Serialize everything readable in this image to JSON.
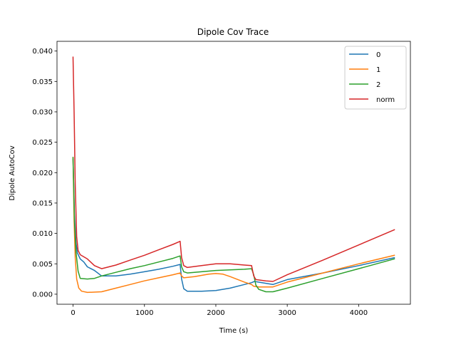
{
  "chart_data": {
    "type": "line",
    "title": "Dipole Cov Trace",
    "xlabel": "Time (s)",
    "ylabel": "Dipole AutoCov",
    "xlim": [
      -225,
      4725
    ],
    "ylim": [
      -0.00165,
      0.0416
    ],
    "xticks": [
      0,
      1000,
      2000,
      3000,
      4000
    ],
    "xtick_labels": [
      "0",
      "1000",
      "2000",
      "3000",
      "4000"
    ],
    "yticks": [
      0.0,
      0.005,
      0.01,
      0.015,
      0.02,
      0.025,
      0.03,
      0.035,
      0.04
    ],
    "ytick_labels": [
      "0.000",
      "0.005",
      "0.010",
      "0.015",
      "0.020",
      "0.025",
      "0.030",
      "0.035",
      "0.040"
    ],
    "grid": false,
    "legend_position": "top-right",
    "series": [
      {
        "name": "0",
        "color": "#1f77b4",
        "points": [
          [
            0,
            0.0222
          ],
          [
            20,
            0.013
          ],
          [
            40,
            0.0085
          ],
          [
            60,
            0.0068
          ],
          [
            100,
            0.0058
          ],
          [
            150,
            0.0053
          ],
          [
            200,
            0.0045
          ],
          [
            300,
            0.0039
          ],
          [
            400,
            0.003
          ],
          [
            600,
            0.003
          ],
          [
            800,
            0.0033
          ],
          [
            1000,
            0.0037
          ],
          [
            1200,
            0.0041
          ],
          [
            1400,
            0.0046
          ],
          [
            1500,
            0.0049
          ],
          [
            1520,
            0.0025
          ],
          [
            1550,
            0.0009
          ],
          [
            1600,
            0.0005
          ],
          [
            1800,
            0.0005
          ],
          [
            2000,
            0.0006
          ],
          [
            2200,
            0.001
          ],
          [
            2400,
            0.0016
          ],
          [
            2500,
            0.0019
          ],
          [
            2540,
            0.0021
          ],
          [
            2700,
            0.0018
          ],
          [
            2800,
            0.0016
          ],
          [
            3000,
            0.0024
          ],
          [
            3500,
            0.0035
          ],
          [
            4000,
            0.0047
          ],
          [
            4500,
            0.006
          ]
        ]
      },
      {
        "name": "1",
        "color": "#ff7f0e",
        "points": [
          [
            0,
            0.0225
          ],
          [
            15,
            0.012
          ],
          [
            30,
            0.006
          ],
          [
            50,
            0.0025
          ],
          [
            80,
            0.001
          ],
          [
            120,
            0.0005
          ],
          [
            200,
            0.0003
          ],
          [
            400,
            0.0004
          ],
          [
            600,
            0.001
          ],
          [
            800,
            0.0016
          ],
          [
            1000,
            0.0022
          ],
          [
            1200,
            0.0027
          ],
          [
            1400,
            0.0032
          ],
          [
            1500,
            0.0035
          ],
          [
            1520,
            0.003
          ],
          [
            1550,
            0.0027
          ],
          [
            1700,
            0.0029
          ],
          [
            1900,
            0.0033
          ],
          [
            2000,
            0.0034
          ],
          [
            2100,
            0.0033
          ],
          [
            2200,
            0.0029
          ],
          [
            2400,
            0.002
          ],
          [
            2500,
            0.0016
          ],
          [
            2530,
            0.0013
          ],
          [
            2600,
            0.0012
          ],
          [
            2800,
            0.0012
          ],
          [
            3000,
            0.002
          ],
          [
            3500,
            0.0035
          ],
          [
            4000,
            0.005
          ],
          [
            4500,
            0.0064
          ]
        ]
      },
      {
        "name": "2",
        "color": "#2ca02c",
        "points": [
          [
            0,
            0.0225
          ],
          [
            20,
            0.012
          ],
          [
            40,
            0.007
          ],
          [
            70,
            0.0038
          ],
          [
            100,
            0.0026
          ],
          [
            200,
            0.0025
          ],
          [
            300,
            0.0026
          ],
          [
            400,
            0.003
          ],
          [
            600,
            0.0036
          ],
          [
            800,
            0.0042
          ],
          [
            1000,
            0.0047
          ],
          [
            1200,
            0.0053
          ],
          [
            1400,
            0.0059
          ],
          [
            1500,
            0.0063
          ],
          [
            1520,
            0.0045
          ],
          [
            1550,
            0.0037
          ],
          [
            1600,
            0.0035
          ],
          [
            1800,
            0.0037
          ],
          [
            2000,
            0.0039
          ],
          [
            2200,
            0.004
          ],
          [
            2400,
            0.0041
          ],
          [
            2500,
            0.0042
          ],
          [
            2530,
            0.0032
          ],
          [
            2560,
            0.0015
          ],
          [
            2600,
            0.0008
          ],
          [
            2700,
            0.0004
          ],
          [
            2800,
            0.0004
          ],
          [
            3000,
            0.001
          ],
          [
            3500,
            0.0026
          ],
          [
            4000,
            0.0042
          ],
          [
            4500,
            0.0058
          ]
        ]
      },
      {
        "name": "norm",
        "color": "#d62728",
        "points": [
          [
            0,
            0.039
          ],
          [
            15,
            0.03
          ],
          [
            30,
            0.018
          ],
          [
            50,
            0.0095
          ],
          [
            70,
            0.0072
          ],
          [
            100,
            0.0065
          ],
          [
            200,
            0.0058
          ],
          [
            300,
            0.0047
          ],
          [
            400,
            0.0042
          ],
          [
            600,
            0.0048
          ],
          [
            800,
            0.0056
          ],
          [
            1000,
            0.0064
          ],
          [
            1200,
            0.0073
          ],
          [
            1400,
            0.0082
          ],
          [
            1500,
            0.0087
          ],
          [
            1520,
            0.006
          ],
          [
            1550,
            0.0047
          ],
          [
            1600,
            0.0044
          ],
          [
            1800,
            0.0047
          ],
          [
            2000,
            0.005
          ],
          [
            2200,
            0.005
          ],
          [
            2400,
            0.0048
          ],
          [
            2500,
            0.0047
          ],
          [
            2530,
            0.003
          ],
          [
            2560,
            0.0024
          ],
          [
            2700,
            0.0022
          ],
          [
            2800,
            0.0021
          ],
          [
            3000,
            0.0032
          ],
          [
            3500,
            0.0056
          ],
          [
            4000,
            0.0081
          ],
          [
            4500,
            0.0106
          ]
        ]
      }
    ]
  }
}
